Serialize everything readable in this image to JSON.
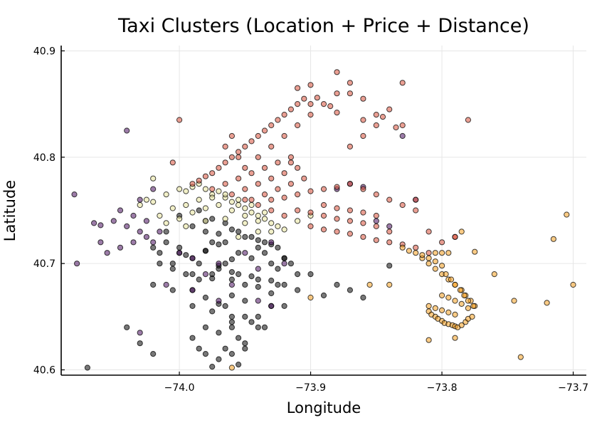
{
  "chart_data": {
    "type": "scatter",
    "title": "Taxi Clusters (Location + Price + Distance)",
    "xlabel": "Longitude",
    "ylabel": "Latitude",
    "xlim": [
      -74.09,
      -73.69
    ],
    "ylim": [
      40.595,
      40.905
    ],
    "x_ticks": [
      -74.0,
      -73.9,
      -73.8,
      -73.7
    ],
    "x_tick_labels": [
      "−74.0",
      "−73.9",
      "−73.8",
      "−73.7"
    ],
    "y_ticks": [
      40.6,
      40.7,
      40.8,
      40.9
    ],
    "y_tick_labels": [
      "40.6",
      "40.7",
      "40.8",
      "40.9"
    ],
    "grid": true,
    "legend": "none",
    "colors": {
      "cluster_black": "#0a0a0a",
      "cluster_purple": "#4a1060",
      "cluster_yellow": "#e8e39a",
      "cluster_red": "#d9503a",
      "cluster_orange": "#f5a020"
    },
    "series": [
      {
        "color_key": "cluster_black",
        "x": [
          -74.02,
          -74.01,
          -74.0,
          -73.99,
          -73.98,
          -73.97,
          -73.965,
          -73.955,
          -73.945,
          -73.94,
          -73.935,
          -73.93,
          -73.925,
          -73.92,
          -73.915,
          -73.91,
          -74.015,
          -74.005,
          -73.995,
          -73.985,
          -73.975,
          -73.96,
          -73.95,
          -73.94,
          -73.93,
          -73.92,
          -73.99,
          -73.98,
          -73.97,
          -73.96,
          -73.95,
          -74.02,
          -74.005,
          -73.99,
          -73.975,
          -73.96,
          -73.945,
          -73.93,
          -73.98,
          -73.97,
          -73.96,
          -73.955,
          -73.95,
          -73.94,
          -73.99,
          -73.985,
          -73.98,
          -73.97,
          -73.965,
          -73.96,
          -73.955,
          -73.975,
          -73.965,
          -73.95,
          -74.04,
          -74.03,
          -74.02,
          -73.96,
          -73.95,
          -73.94,
          -73.92,
          -73.9,
          -73.89,
          -73.88,
          -73.87,
          -73.86,
          -74.01,
          -73.99,
          -73.98,
          -73.97,
          -73.96,
          -73.95,
          -73.94,
          -73.93,
          -74.0,
          -73.985,
          -73.975,
          -73.965,
          -73.955,
          -73.945,
          -73.935,
          -73.925,
          -74.005,
          -73.995,
          -73.98,
          -73.97,
          -73.96,
          -73.99,
          -73.975,
          -73.96,
          -73.945,
          -73.93,
          -74.015,
          -74.0,
          -73.985,
          -73.97,
          -73.955,
          -73.94,
          -73.925,
          -73.91,
          -73.98,
          -73.975,
          -73.965,
          -74.07,
          -73.84,
          -73.92,
          -73.935
        ],
        "y": [
          40.715,
          40.72,
          40.71,
          40.705,
          40.712,
          40.718,
          40.72,
          40.71,
          40.705,
          40.715,
          40.71,
          40.7,
          40.695,
          40.705,
          40.7,
          40.69,
          40.7,
          40.695,
          40.69,
          40.685,
          40.69,
          40.685,
          40.68,
          40.678,
          40.672,
          40.68,
          40.675,
          40.668,
          40.662,
          40.67,
          40.665,
          40.68,
          40.675,
          40.66,
          40.655,
          40.65,
          40.645,
          40.66,
          40.64,
          40.635,
          40.645,
          40.63,
          40.625,
          40.64,
          40.63,
          40.62,
          40.615,
          40.61,
          40.62,
          40.615,
          40.605,
          40.603,
          40.66,
          40.65,
          40.64,
          40.625,
          40.615,
          40.64,
          40.62,
          40.65,
          40.66,
          40.69,
          40.67,
          40.68,
          40.675,
          40.668,
          40.73,
          40.735,
          40.74,
          40.728,
          40.732,
          40.725,
          40.722,
          40.718,
          40.745,
          40.75,
          40.742,
          40.738,
          40.73,
          40.725,
          40.72,
          40.715,
          40.7,
          40.708,
          40.712,
          40.698,
          40.704,
          40.69,
          40.686,
          40.692,
          40.688,
          40.684,
          40.71,
          40.715,
          40.7,
          40.695,
          40.69,
          40.685,
          40.68,
          40.675,
          40.73,
          40.72,
          40.7,
          40.602,
          40.698,
          40.705,
          40.64
        ]
      },
      {
        "color_key": "cluster_purple",
        "x": [
          -74.08,
          -74.078,
          -74.065,
          -74.06,
          -74.05,
          -74.045,
          -74.04,
          -74.035,
          -74.03,
          -74.025,
          -74.02,
          -74.015,
          -74.0,
          -73.99,
          -73.97,
          -73.95,
          -73.93,
          -73.98,
          -73.96,
          -73.94,
          -73.92,
          -74.06,
          -74.055,
          -73.88,
          -73.87,
          -73.86,
          -73.85,
          -73.84,
          -73.83,
          -73.82,
          -74.04,
          -74.03,
          -74.02,
          -74.03,
          -73.93,
          -73.94,
          -74.045,
          -74.035,
          -74.025,
          -74.01,
          -73.99,
          -73.97
        ],
        "y": [
          40.765,
          40.7,
          40.738,
          40.736,
          40.74,
          40.75,
          40.735,
          40.745,
          40.73,
          40.74,
          40.72,
          40.73,
          40.71,
          40.705,
          40.7,
          40.71,
          40.72,
          40.69,
          40.68,
          40.695,
          40.7,
          40.72,
          40.71,
          40.77,
          40.775,
          40.772,
          40.74,
          40.735,
          40.82,
          40.76,
          40.825,
          40.76,
          40.77,
          40.635,
          40.66,
          40.665,
          40.715,
          40.72,
          40.725,
          40.68,
          40.675,
          40.665
        ]
      },
      {
        "color_key": "cluster_yellow",
        "x": [
          -74.03,
          -74.02,
          -74.01,
          -74.0,
          -73.995,
          -73.99,
          -73.985,
          -73.98,
          -73.975,
          -73.97,
          -73.965,
          -73.96,
          -73.955,
          -73.95,
          -73.945,
          -73.94,
          -73.935,
          -73.93,
          -73.925,
          -74.005,
          -73.995,
          -73.985,
          -73.975,
          -73.965,
          -73.955,
          -73.945,
          -73.935,
          -74.015,
          -74.0,
          -73.99,
          -73.98,
          -73.97,
          -73.96,
          -73.95,
          -73.94,
          -74.025,
          -74.01,
          -73.995,
          -73.98,
          -73.965,
          -73.95,
          -73.93,
          -73.92,
          -73.94,
          -74.02,
          -73.91,
          -73.9,
          -73.955
        ],
        "y": [
          40.755,
          40.758,
          40.765,
          40.77,
          40.768,
          40.772,
          40.775,
          40.77,
          40.765,
          40.768,
          40.762,
          40.758,
          40.755,
          40.752,
          40.748,
          40.745,
          40.742,
          40.738,
          40.735,
          40.752,
          40.755,
          40.76,
          40.762,
          40.765,
          40.76,
          40.755,
          40.748,
          40.745,
          40.742,
          40.748,
          40.752,
          40.755,
          40.75,
          40.745,
          40.74,
          40.76,
          40.738,
          40.735,
          40.74,
          40.742,
          40.738,
          40.73,
          40.732,
          40.73,
          40.78,
          40.74,
          40.745,
          40.725
        ]
      },
      {
        "color_key": "cluster_red",
        "x": [
          -73.99,
          -73.985,
          -73.98,
          -73.975,
          -73.97,
          -73.965,
          -73.96,
          -73.955,
          -73.95,
          -73.945,
          -73.94,
          -73.935,
          -73.93,
          -73.925,
          -73.92,
          -73.915,
          -73.91,
          -73.905,
          -73.975,
          -73.965,
          -73.955,
          -73.945,
          -73.935,
          -73.925,
          -73.915,
          -73.96,
          -73.95,
          -73.94,
          -73.93,
          -73.92,
          -73.945,
          -73.935,
          -73.925,
          -73.915,
          -73.905,
          -73.95,
          -73.94,
          -73.93,
          -73.92,
          -73.95,
          -73.94,
          -73.93,
          -73.92,
          -73.91,
          -73.9,
          -73.89,
          -73.88,
          -73.87,
          -73.86,
          -73.85,
          -73.84,
          -73.83,
          -73.93,
          -73.92,
          -73.91,
          -73.9,
          -73.89,
          -73.88,
          -73.87,
          -73.86,
          -73.85,
          -73.84,
          -73.83,
          -73.82,
          -73.91,
          -73.9,
          -73.89,
          -73.88,
          -73.87,
          -73.86,
          -73.85,
          -73.84,
          -73.89,
          -73.88,
          -73.87,
          -73.86,
          -73.85,
          -73.9,
          -73.89,
          -73.88,
          -73.87,
          -73.86,
          -73.85,
          -73.84,
          -73.83,
          -73.82,
          -73.81,
          -73.8,
          -73.79,
          -73.91,
          -73.9,
          -73.88,
          -73.86,
          -73.87,
          -73.85,
          -73.83,
          -73.9,
          -73.895,
          -73.885,
          -73.88,
          -73.91,
          -73.915,
          -74.0,
          -74.005,
          -73.965,
          -73.96,
          -73.955,
          -73.87,
          -73.86,
          -73.845,
          -73.835,
          -73.81,
          -73.79,
          -73.78,
          -73.82
        ],
        "y": [
          40.775,
          40.778,
          40.782,
          40.785,
          40.79,
          40.795,
          40.8,
          40.805,
          40.81,
          40.815,
          40.82,
          40.825,
          40.83,
          40.835,
          40.84,
          40.845,
          40.85,
          40.855,
          40.77,
          40.775,
          40.78,
          40.785,
          40.79,
          40.795,
          40.8,
          40.765,
          40.77,
          40.775,
          40.78,
          40.785,
          40.76,
          40.765,
          40.77,
          40.775,
          40.78,
          40.76,
          40.755,
          40.75,
          40.745,
          40.79,
          40.8,
          40.81,
          40.82,
          40.83,
          40.84,
          40.85,
          40.86,
          40.87,
          40.835,
          40.84,
          40.845,
          40.83,
          40.76,
          40.762,
          40.765,
          40.768,
          40.77,
          40.772,
          40.775,
          40.77,
          40.765,
          40.76,
          40.755,
          40.75,
          40.75,
          40.748,
          40.745,
          40.742,
          40.74,
          40.738,
          40.735,
          40.73,
          40.755,
          40.752,
          40.75,
          40.748,
          40.745,
          40.735,
          40.732,
          40.73,
          40.728,
          40.725,
          40.722,
          40.72,
          40.718,
          40.715,
          40.71,
          40.72,
          40.725,
          40.865,
          40.868,
          40.88,
          40.855,
          40.86,
          40.83,
          40.87,
          40.85,
          40.856,
          40.848,
          40.842,
          40.79,
          40.795,
          40.835,
          40.795,
          40.81,
          40.82,
          40.8,
          40.81,
          40.82,
          40.838,
          40.828,
          40.73,
          40.725,
          40.835,
          40.76
        ]
      },
      {
        "color_key": "cluster_orange",
        "x": [
          -73.815,
          -73.81,
          -73.805,
          -73.8,
          -73.795,
          -73.79,
          -73.785,
          -73.782,
          -73.778,
          -73.775,
          -73.81,
          -73.808,
          -73.805,
          -73.803,
          -73.8,
          -73.798,
          -73.795,
          -73.792,
          -73.79,
          -73.788,
          -73.785,
          -73.782,
          -73.78,
          -73.777,
          -73.81,
          -73.805,
          -73.8,
          -73.795,
          -73.79,
          -73.8,
          -73.795,
          -73.79,
          -73.785,
          -73.78,
          -73.82,
          -73.815,
          -73.81,
          -73.805,
          -73.8,
          -73.797,
          -73.793,
          -73.79,
          -73.786,
          -73.783,
          -73.78,
          -73.776,
          -73.83,
          -73.825,
          -73.805,
          -73.8,
          -73.795,
          -73.76,
          -73.745,
          -73.74,
          -73.72,
          -73.715,
          -73.705,
          -73.7,
          -73.775,
          -73.785,
          -73.79,
          -73.81,
          -73.84,
          -73.855,
          -73.96,
          -73.9
        ],
        "y": [
          40.705,
          40.7,
          40.695,
          40.69,
          40.685,
          40.68,
          40.675,
          40.67,
          40.665,
          40.66,
          40.655,
          40.652,
          40.65,
          40.648,
          40.646,
          40.644,
          40.643,
          40.642,
          40.641,
          40.64,
          40.642,
          40.645,
          40.648,
          40.65,
          40.66,
          40.658,
          40.656,
          40.654,
          40.652,
          40.67,
          40.668,
          40.665,
          40.662,
          40.658,
          40.71,
          40.708,
          40.705,
          40.702,
          40.698,
          40.69,
          40.685,
          40.68,
          40.675,
          40.67,
          40.665,
          40.66,
          40.715,
          40.712,
          40.71,
          40.71,
          40.71,
          40.69,
          40.665,
          40.612,
          40.663,
          40.723,
          40.746,
          40.68,
          40.711,
          40.73,
          40.63,
          40.628,
          40.68,
          40.68,
          40.602,
          40.668
        ]
      }
    ]
  }
}
